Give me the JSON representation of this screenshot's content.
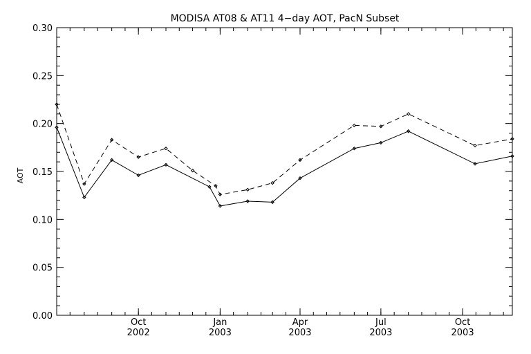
{
  "chart_data": {
    "type": "line",
    "title": "MODISA AT08 & AT11 4−day AOT, PacN Subset",
    "xlabel": "",
    "ylabel": "AOT",
    "xlim": [
      "2002-07-01",
      "2003-11-26"
    ],
    "ylim": [
      0,
      0.3
    ],
    "y_ticks": [
      "0.00",
      "0.05",
      "0.10",
      "0.15",
      "0.20",
      "0.25",
      "0.30"
    ],
    "x_ticks": [
      {
        "date": "2002-10-01",
        "month": "Oct",
        "year": "2002"
      },
      {
        "date": "2003-01-01",
        "month": "Jan",
        "year": "2003"
      },
      {
        "date": "2003-04-01",
        "month": "Apr",
        "year": "2003"
      },
      {
        "date": "2003-07-01",
        "month": "Jul",
        "year": "2003"
      },
      {
        "date": "2003-10-01",
        "month": "Oct",
        "year": "2003"
      }
    ],
    "grid": false,
    "series": [
      {
        "style": "dashed",
        "color": "#000000",
        "x": [
          "2002-07-01",
          "2002-08-01",
          "2002-09-01",
          "2002-10-01",
          "2002-11-01",
          "2002-12-01",
          "2002-12-27",
          "2003-01-01",
          "2003-02-01",
          "2003-03-01",
          "2003-04-01",
          "2003-06-01",
          "2003-07-01",
          "2003-08-01",
          "2003-10-15",
          "2003-11-26"
        ],
        "y": [
          0.22,
          0.137,
          0.183,
          0.165,
          0.174,
          0.151,
          0.135,
          0.126,
          0.131,
          0.138,
          0.162,
          0.198,
          0.197,
          0.21,
          0.177,
          0.184
        ]
      },
      {
        "style": "solid",
        "color": "#000000",
        "x": [
          "2002-07-01",
          "2002-08-01",
          "2002-09-01",
          "2002-10-01",
          "2002-11-01",
          "2002-12-20",
          "2003-01-01",
          "2003-02-01",
          "2003-03-01",
          "2003-04-01",
          "2003-06-01",
          "2003-07-01",
          "2003-08-01",
          "2003-10-15",
          "2003-11-26"
        ],
        "y": [
          0.196,
          0.123,
          0.162,
          0.146,
          0.157,
          0.134,
          0.114,
          0.119,
          0.118,
          0.143,
          0.174,
          0.18,
          0.192,
          0.158,
          0.166
        ]
      }
    ]
  }
}
